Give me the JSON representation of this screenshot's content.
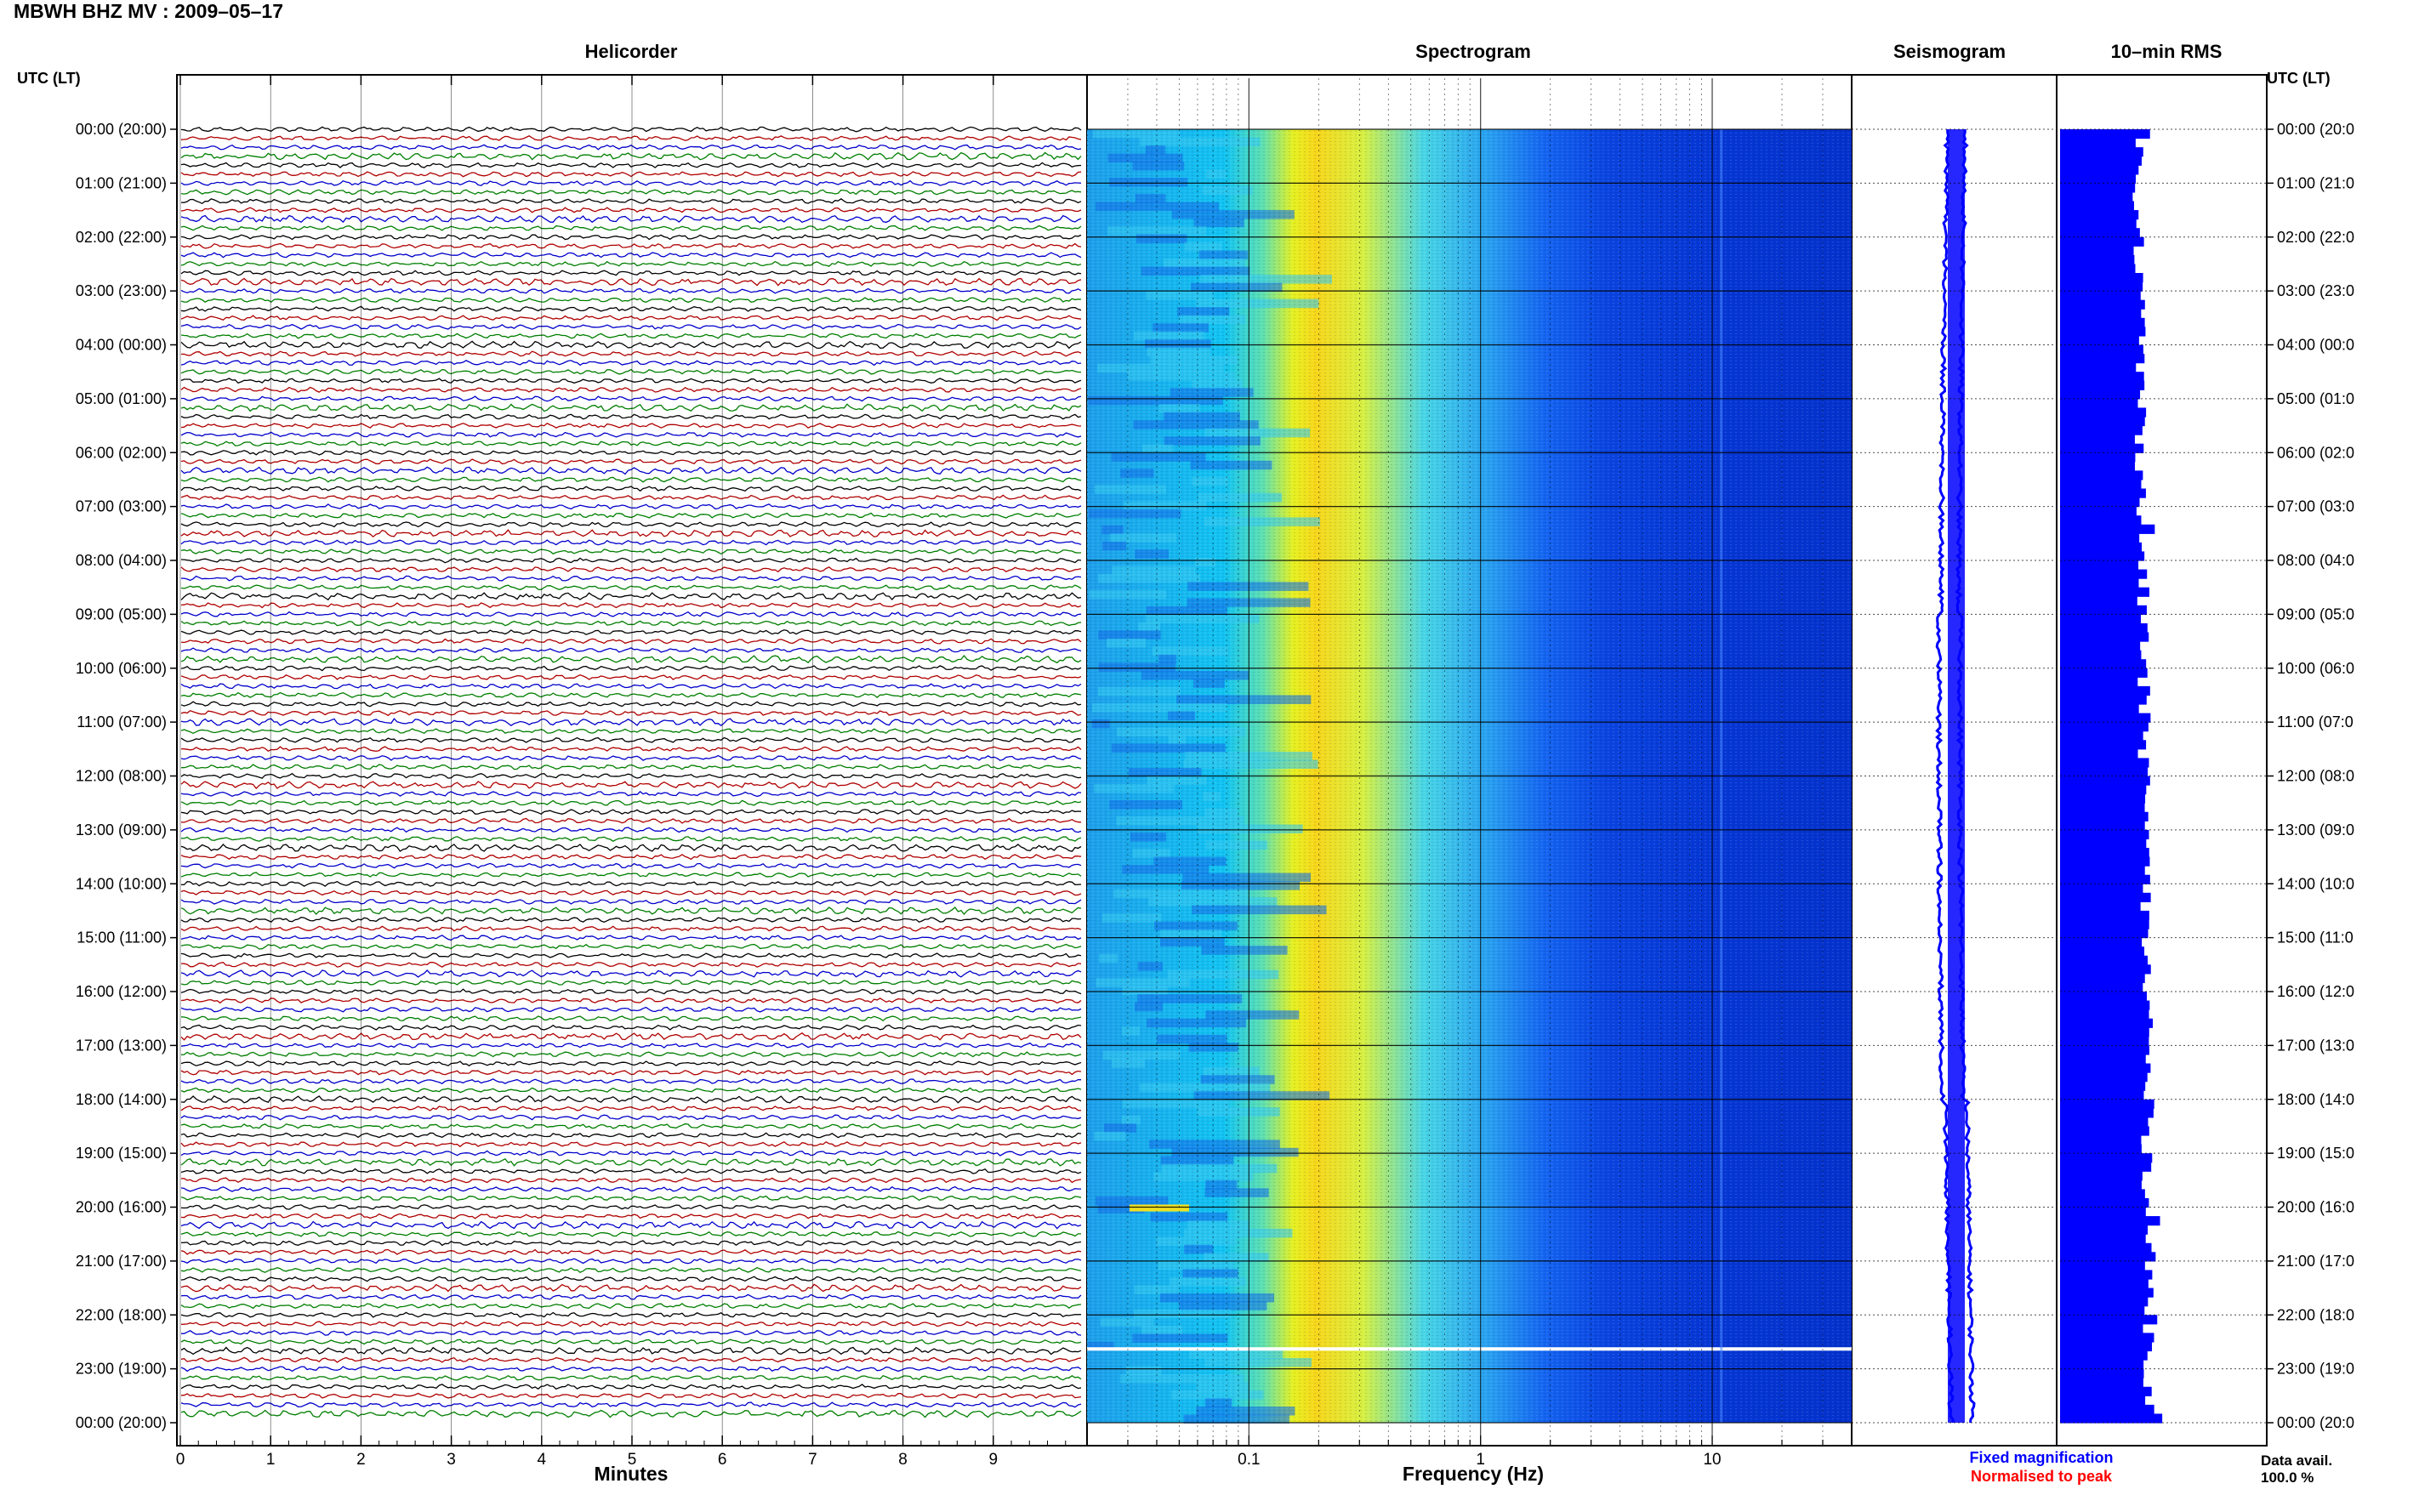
{
  "title": "MBWH BHZ MV : 2009–05–17",
  "panels": {
    "helicorder": "Helicorder",
    "spectrogram": "Spectrogram",
    "seismogram": "Seismogram",
    "rms": "10–min RMS"
  },
  "left_axis_header": "UTC (LT)",
  "right_axis_header": "UTC (LT)",
  "time_labels_left": [
    "00:00 (20:00)",
    "01:00 (21:00)",
    "02:00 (22:00)",
    "03:00 (23:00)",
    "04:00 (00:00)",
    "05:00 (01:00)",
    "06:00 (02:00)",
    "07:00 (03:00)",
    "08:00 (04:00)",
    "09:00 (05:00)",
    "10:00 (06:00)",
    "11:00 (07:00)",
    "12:00 (08:00)",
    "13:00 (09:00)",
    "14:00 (10:00)",
    "15:00 (11:00)",
    "16:00 (12:00)",
    "17:00 (13:00)",
    "18:00 (14:00)",
    "19:00 (15:00)",
    "20:00 (16:00)",
    "21:00 (17:00)",
    "22:00 (18:00)",
    "23:00 (19:00)",
    "00:00 (20:00)"
  ],
  "time_labels_right": [
    "00:00 (20:0",
    "01:00 (21:0",
    "02:00 (22:0",
    "03:00 (23:0",
    "04:00 (00:0",
    "05:00 (01:0",
    "06:00 (02:0",
    "07:00 (03:0",
    "08:00 (04:0",
    "09:00 (05:0",
    "10:00 (06:0",
    "11:00 (07:0",
    "12:00 (08:0",
    "13:00 (09:0",
    "14:00 (10:0",
    "15:00 (11:0",
    "16:00 (12:0",
    "17:00 (13:0",
    "18:00 (14:0",
    "19:00 (15:0",
    "20:00 (16:0",
    "21:00 (17:0",
    "22:00 (18:0",
    "23:00 (19:0",
    "00:00 (20:0"
  ],
  "helicorder_xlabel": "Minutes",
  "spectrogram_xlabel": "Frequency (Hz)",
  "legend": {
    "fixed": "Fixed magnification",
    "normalised": "Normalised to peak",
    "fixed_color": "#0000ff",
    "normalised_color": "#ff0000"
  },
  "data_avail_label": "Data avail.",
  "data_avail_value": "100.0 %",
  "chart_data": [
    {
      "type": "line",
      "panel": "helicorder",
      "xlabel": "Minutes",
      "ticks": [
        "0",
        "1",
        "2",
        "3",
        "4",
        "5",
        "6",
        "7",
        "8",
        "9"
      ],
      "xlim": [
        0,
        10
      ],
      "traces_per_hour": 6,
      "trace_count": 144,
      "trace_colors": [
        "#000000",
        "#b00000",
        "#0000cc",
        "#007f00"
      ]
    },
    {
      "type": "heatmap",
      "panel": "spectrogram",
      "xlabel": "Frequency (Hz)",
      "ticks": [
        "0.1",
        "1",
        "10"
      ],
      "scale": "log",
      "xlim": [
        0.02,
        40
      ],
      "colormap": [
        "#00008b",
        "#0000ff",
        "#00bfff",
        "#ffff00",
        "#ff7f00",
        "#ff0000"
      ]
    },
    {
      "type": "line",
      "panel": "seismogram",
      "note_color": "#0000ff"
    },
    {
      "type": "bar",
      "panel": "rms",
      "color": "#0000ff"
    }
  ]
}
